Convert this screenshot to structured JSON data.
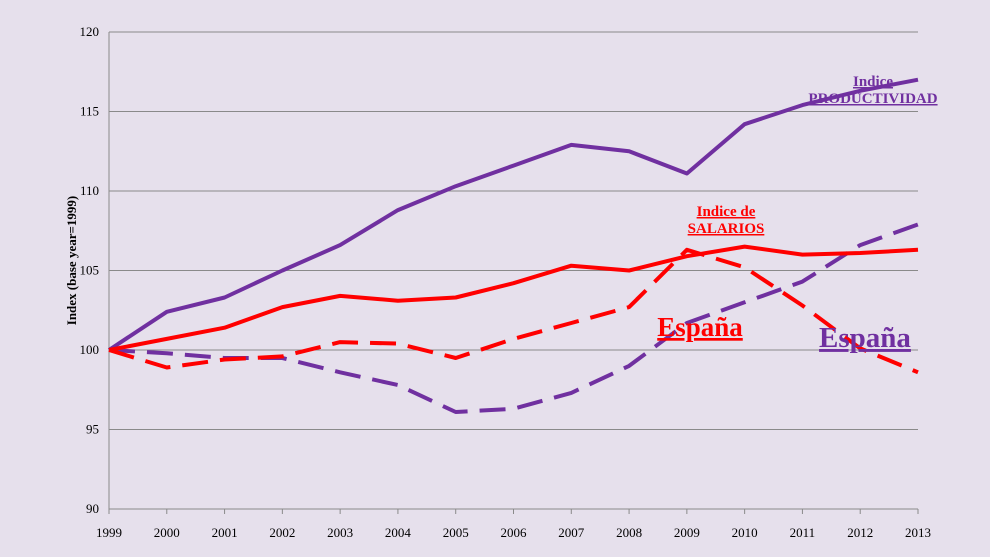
{
  "chart_data": {
    "type": "line",
    "ylabel": "Index (base year=1999)",
    "xlabel": "",
    "title": "",
    "categories": [
      "1999",
      "2000",
      "2001",
      "2002",
      "2003",
      "2004",
      "2005",
      "2006",
      "2007",
      "2008",
      "2009",
      "2010",
      "2011",
      "2012",
      "2013"
    ],
    "yticks": [
      "90",
      "95",
      "100",
      "105",
      "110",
      "115",
      "120"
    ],
    "ylim": [
      90,
      120
    ],
    "grid": "horizontal",
    "series": [
      {
        "name": "Indice PRODUCTIVIDAD",
        "color": "#7030a0",
        "style": "solid",
        "values": [
          100,
          102.4,
          103.3,
          105.0,
          106.6,
          108.8,
          110.3,
          111.6,
          112.9,
          112.5,
          111.1,
          114.2,
          115.4,
          116.3,
          117.0
        ]
      },
      {
        "name": "Indice de SALARIOS",
        "color": "#ff0000",
        "style": "solid",
        "values": [
          100,
          100.7,
          101.4,
          102.7,
          103.4,
          103.1,
          103.3,
          104.2,
          105.3,
          105.0,
          105.9,
          106.5,
          106.0,
          106.1,
          106.3
        ]
      },
      {
        "name": "España",
        "color": "#ff0000",
        "style": "dashed",
        "values": [
          100,
          98.9,
          99.4,
          99.6,
          100.5,
          100.4,
          99.5,
          100.7,
          101.7,
          102.7,
          106.3,
          105.2,
          102.8,
          100.1,
          98.6
        ]
      },
      {
        "name": "España",
        "color": "#7030a0",
        "style": "dashed",
        "values": [
          100,
          99.8,
          99.5,
          99.5,
          98.6,
          97.8,
          96.1,
          96.3,
          97.3,
          99.0,
          101.7,
          103.0,
          104.3,
          106.6,
          107.9
        ]
      }
    ],
    "annotations": [
      {
        "lines": [
          "Indice",
          "PRODUCTIVIDAD"
        ],
        "color": "#7030a0",
        "size": "small"
      },
      {
        "lines": [
          "Indice de",
          "SALARIOS"
        ],
        "color": "#ff0000",
        "size": "small"
      },
      {
        "lines": [
          "España"
        ],
        "color": "#ff0000",
        "size": "large"
      },
      {
        "lines": [
          "España"
        ],
        "color": "#7030a0",
        "size": "large"
      }
    ]
  }
}
